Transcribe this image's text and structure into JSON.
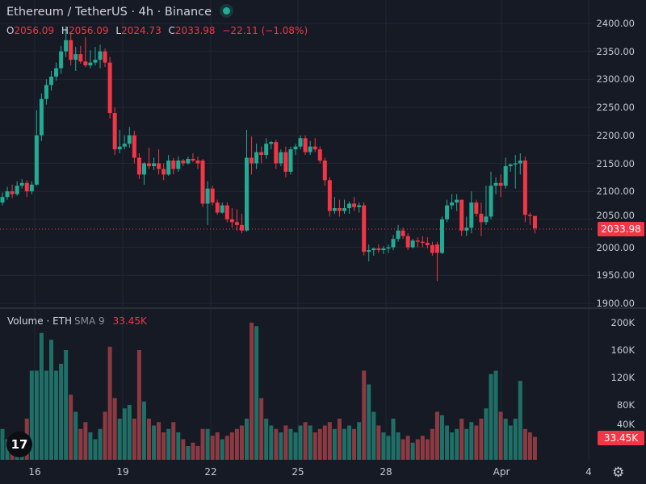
{
  "header": {
    "title": "Ethereum / TetherUS · 4h · Binance",
    "status_color": "#22ab94",
    "ohlc": {
      "o_label": "O",
      "o": "2056.09",
      "h_label": "H",
      "h": "2056.09",
      "l_label": "L",
      "l": "2024.73",
      "c_label": "C",
      "c": "2033.98",
      "change": "−22.11 (−1.08%)"
    }
  },
  "volume_legend": {
    "title": "Volume · ETH",
    "sma": "SMA 9",
    "value": "33.45K"
  },
  "last_price_tag": "2033.98",
  "last_volume_tag": "33.45K",
  "colors": {
    "up": "#22ab94",
    "down": "#f23645",
    "up_volume": "#1f6f66",
    "down_volume": "#8c3a42",
    "background": "#161a25"
  },
  "chart_data": [
    {
      "type": "candlestick",
      "title": "Ethereum / TetherUS · 4h · Binance",
      "ylim": [
        1900,
        2400
      ],
      "y_ticks": [
        "2400.00",
        "2350.00",
        "2300.00",
        "2250.00",
        "2200.00",
        "2150.00",
        "2100.00",
        "2050.00",
        "2000.00",
        "1950.00",
        "1900.00"
      ],
      "x_ticks": [
        "16",
        "19",
        "22",
        "25",
        "28",
        "Apr",
        "4"
      ],
      "grid": true,
      "last_price": 2033.98,
      "candles_ohlc": [
        [
          2080,
          2098,
          2075,
          2090
        ],
        [
          2090,
          2108,
          2085,
          2100
        ],
        [
          2100,
          2112,
          2088,
          2095
        ],
        [
          2095,
          2118,
          2092,
          2110
        ],
        [
          2110,
          2122,
          2105,
          2115
        ],
        [
          2115,
          2120,
          2090,
          2100
        ],
        [
          2100,
          2118,
          2095,
          2112
        ],
        [
          2112,
          2245,
          2110,
          2200
        ],
        [
          2200,
          2275,
          2190,
          2265
        ],
        [
          2265,
          2300,
          2255,
          2290
        ],
        [
          2290,
          2315,
          2280,
          2305
        ],
        [
          2305,
          2330,
          2298,
          2320
        ],
        [
          2320,
          2360,
          2310,
          2350
        ],
        [
          2350,
          2395,
          2340,
          2370
        ],
        [
          2370,
          2385,
          2325,
          2335
        ],
        [
          2335,
          2358,
          2315,
          2345
        ],
        [
          2345,
          2360,
          2328,
          2332
        ],
        [
          2332,
          2375,
          2322,
          2325
        ],
        [
          2325,
          2352,
          2320,
          2330
        ],
        [
          2330,
          2358,
          2325,
          2335
        ],
        [
          2335,
          2362,
          2320,
          2350
        ],
        [
          2350,
          2355,
          2322,
          2330
        ],
        [
          2330,
          2340,
          2230,
          2240
        ],
        [
          2240,
          2250,
          2165,
          2175
        ],
        [
          2175,
          2210,
          2168,
          2180
        ],
        [
          2180,
          2200,
          2175,
          2185
        ],
        [
          2185,
          2215,
          2178,
          2200
        ],
        [
          2200,
          2208,
          2150,
          2160
        ],
        [
          2160,
          2168,
          2122,
          2130
        ],
        [
          2130,
          2152,
          2112,
          2150
        ],
        [
          2150,
          2178,
          2140,
          2145
        ],
        [
          2145,
          2160,
          2138,
          2150
        ],
        [
          2150,
          2175,
          2130,
          2140
        ],
        [
          2140,
          2150,
          2120,
          2130
        ],
        [
          2130,
          2165,
          2128,
          2155
        ],
        [
          2155,
          2160,
          2130,
          2140
        ],
        [
          2140,
          2162,
          2135,
          2155
        ],
        [
          2155,
          2158,
          2145,
          2150
        ],
        [
          2150,
          2162,
          2148,
          2158
        ],
        [
          2158,
          2168,
          2152,
          2155
        ],
        [
          2155,
          2162,
          2140,
          2150
        ],
        [
          2155,
          2158,
          2072,
          2078
        ],
        [
          2078,
          2118,
          2040,
          2105
        ],
        [
          2105,
          2110,
          2075,
          2080
        ],
        [
          2080,
          2085,
          2058,
          2062
        ],
        [
          2062,
          2080,
          2060,
          2075
        ],
        [
          2075,
          2080,
          2045,
          2050
        ],
        [
          2050,
          2070,
          2035,
          2045
        ],
        [
          2045,
          2068,
          2030,
          2040
        ],
        [
          2040,
          2060,
          2025,
          2030
        ],
        [
          2030,
          2210,
          2028,
          2160
        ],
        [
          2160,
          2198,
          2130,
          2150
        ],
        [
          2150,
          2185,
          2140,
          2170
        ],
        [
          2170,
          2180,
          2150,
          2165
        ],
        [
          2165,
          2195,
          2158,
          2185
        ],
        [
          2185,
          2190,
          2175,
          2188
        ],
        [
          2188,
          2192,
          2140,
          2150
        ],
        [
          2150,
          2175,
          2145,
          2170
        ],
        [
          2170,
          2180,
          2125,
          2135
        ],
        [
          2135,
          2180,
          2130,
          2175
        ],
        [
          2175,
          2185,
          2165,
          2180
        ],
        [
          2180,
          2200,
          2175,
          2195
        ],
        [
          2195,
          2200,
          2165,
          2170
        ],
        [
          2170,
          2190,
          2165,
          2180
        ],
        [
          2180,
          2195,
          2170,
          2175
        ],
        [
          2175,
          2180,
          2150,
          2155
        ],
        [
          2155,
          2160,
          2110,
          2120
        ],
        [
          2120,
          2125,
          2055,
          2065
        ],
        [
          2065,
          2090,
          2060,
          2070
        ],
        [
          2070,
          2085,
          2055,
          2065
        ],
        [
          2065,
          2085,
          2060,
          2070
        ],
        [
          2070,
          2082,
          2060,
          2078
        ],
        [
          2078,
          2090,
          2065,
          2072
        ],
        [
          2072,
          2080,
          2062,
          2075
        ],
        [
          2075,
          2080,
          1985,
          1992
        ],
        [
          1992,
          2005,
          1975,
          1995
        ],
        [
          1995,
          2000,
          1985,
          1998
        ],
        [
          1998,
          2005,
          1990,
          1995
        ],
        [
          1995,
          2002,
          1988,
          1998
        ],
        [
          1998,
          2005,
          1990,
          2000
        ],
        [
          2000,
          2022,
          1995,
          2015
        ],
        [
          2015,
          2040,
          2010,
          2030
        ],
        [
          2030,
          2035,
          2015,
          2020
        ],
        [
          2020,
          2025,
          1995,
          2000
        ],
        [
          2000,
          2015,
          1998,
          2012
        ],
        [
          2012,
          2018,
          2000,
          2010
        ],
        [
          2010,
          2020,
          2000,
          2008
        ],
        [
          2008,
          2018,
          1998,
          2004
        ],
        [
          2004,
          2010,
          1985,
          1990
        ],
        [
          2005,
          2010,
          1940,
          1990
        ],
        [
          1990,
          2055,
          1988,
          2050
        ],
        [
          2050,
          2085,
          2045,
          2075
        ],
        [
          2075,
          2095,
          2068,
          2080
        ],
        [
          2080,
          2095,
          2065,
          2085
        ],
        [
          2085,
          2085,
          2020,
          2030
        ],
        [
          2030,
          2055,
          2020,
          2035
        ],
        [
          2035,
          2100,
          2025,
          2080
        ],
        [
          2080,
          2085,
          2055,
          2060
        ],
        [
          2060,
          2080,
          2020,
          2045
        ],
        [
          2045,
          2110,
          2040,
          2055
        ],
        [
          2055,
          2135,
          2050,
          2110
        ],
        [
          2110,
          2125,
          2095,
          2115
        ],
        [
          2115,
          2130,
          2090,
          2110
        ],
        [
          2110,
          2160,
          2105,
          2145
        ],
        [
          2145,
          2150,
          2135,
          2148
        ],
        [
          2148,
          2165,
          2105,
          2150
        ],
        [
          2150,
          2168,
          2130,
          2155
        ],
        [
          2155,
          2162,
          2045,
          2058
        ],
        [
          2058,
          2062,
          2040,
          2056.09
        ],
        [
          2056.09,
          2056.09,
          2024.73,
          2033.98
        ]
      ]
    },
    {
      "type": "bar",
      "title": "Volume · ETH",
      "unit": "K",
      "ylim": [
        0,
        200
      ],
      "y_ticks": [
        "200K",
        "160K",
        "120K",
        "80K",
        "40K"
      ],
      "values": [
        45,
        30,
        25,
        35,
        40,
        60,
        130,
        130,
        185,
        130,
        175,
        130,
        140,
        160,
        95,
        70,
        45,
        55,
        40,
        30,
        45,
        70,
        165,
        90,
        60,
        75,
        80,
        60,
        160,
        85,
        60,
        50,
        55,
        40,
        45,
        55,
        40,
        30,
        20,
        25,
        20,
        45,
        45,
        35,
        40,
        30,
        35,
        40,
        45,
        50,
        60,
        200,
        195,
        90,
        60,
        50,
        45,
        40,
        50,
        45,
        40,
        50,
        55,
        50,
        40,
        45,
        50,
        55,
        45,
        60,
        45,
        50,
        45,
        55,
        130,
        110,
        70,
        50,
        40,
        35,
        60,
        40,
        30,
        35,
        25,
        30,
        35,
        30,
        45,
        70,
        65,
        50,
        40,
        45,
        60,
        45,
        55,
        50,
        60,
        75,
        125,
        130,
        70,
        60,
        50,
        60,
        115,
        45,
        40,
        33.45
      ]
    }
  ]
}
